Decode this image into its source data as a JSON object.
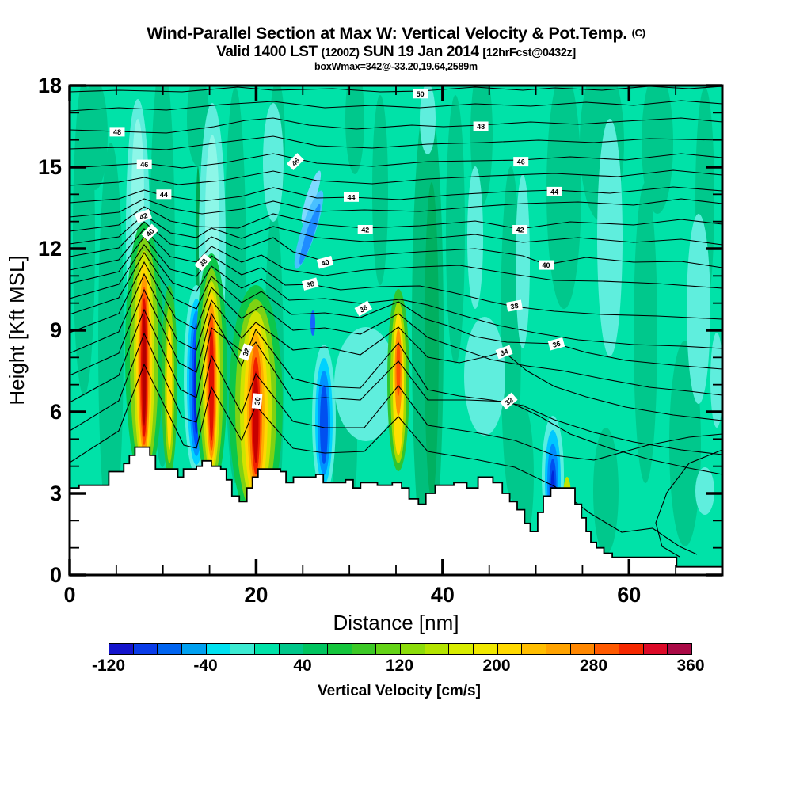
{
  "header": {
    "main_title": "Wind-Parallel Section at Max W: Vertical Velocity & Pot.Temp.",
    "main_title_unit": "(C)",
    "subtitle": {
      "valid": "Valid 1400 LST",
      "zulu": "(1200Z)",
      "date": "SUN 19 Jan 2014",
      "fcst": "[12hrFcst@0432z]"
    },
    "annotation": "boxWmax=342@-33.20,19.64,2589m"
  },
  "axes": {
    "x": {
      "label": "Distance [nm]",
      "min": 0,
      "max": 70,
      "major_ticks": [
        0,
        20,
        40,
        60
      ],
      "minor_step": 5
    },
    "y": {
      "label": "Height [Kft MSL]",
      "min": 0,
      "max": 18,
      "major_ticks": [
        0,
        3,
        6,
        9,
        12,
        15,
        18
      ],
      "minor_step": 1
    }
  },
  "colorbar": {
    "label": "Vertical Velocity [cm/s]",
    "ticks": [
      -120,
      -40,
      40,
      120,
      200,
      280,
      360
    ],
    "min": -120,
    "max": 360,
    "step": 20,
    "colors": [
      "#1414cc",
      "#0a3ce8",
      "#0064f0",
      "#00a0f0",
      "#00e1f0",
      "#3cebd2",
      "#00e2a8",
      "#00c78a",
      "#00c45f",
      "#14c53c",
      "#3cc926",
      "#64d316",
      "#8cdc0a",
      "#b4e400",
      "#d8ec00",
      "#f0e800",
      "#ffd900",
      "#ffbe00",
      "#ffa300",
      "#ff8700",
      "#ff5a00",
      "#f52800",
      "#dc0a28",
      "#aa0a46"
    ]
  },
  "chart_data": {
    "type": "heatmap",
    "title": "Wind-Parallel Section at Max W: Vertical Velocity & Pot.Temp. (C)",
    "xlabel": "Distance [nm]",
    "ylabel": "Height [Kft MSL]",
    "xlim": [
      0,
      70
    ],
    "ylim": [
      0,
      18
    ],
    "fill_field": {
      "variable": "Vertical Velocity",
      "units": "cm/s",
      "range": [
        -120,
        360
      ],
      "contour_interval": 20,
      "background_value_band": [
        0,
        40
      ]
    },
    "line_contours": {
      "variable": "Potential Temperature",
      "units": "C",
      "interval": 1,
      "labeled_interval": 2,
      "labeled_levels": [
        30,
        32,
        34,
        36,
        38,
        40,
        42,
        44,
        46,
        48,
        50
      ]
    },
    "max_w": {
      "value_cms": 342,
      "location": "-33.20,19.64",
      "altitude_m": 2589
    },
    "features": {
      "updrafts": [
        {
          "x_nm": 8.0,
          "base_kft": 4.7,
          "top_kft": 12.6,
          "peak_cms": 340
        },
        {
          "x_nm": 10.7,
          "base_kft": 3.9,
          "top_kft": 10.5,
          "peak_cms": 140
        },
        {
          "x_nm": 15.2,
          "base_kft": 4.2,
          "top_kft": 11.8,
          "peak_cms": 320
        },
        {
          "x_nm": 20.0,
          "base_kft": 3.9,
          "top_kft": 11.4,
          "peak_cms": 342
        },
        {
          "x_nm": 35.3,
          "base_kft": 3.3,
          "top_kft": 10.2,
          "peak_cms": 260
        }
      ],
      "downdrafts": [
        {
          "x_nm": 13.6,
          "base_kft": 4.3,
          "top_kft": 11.0,
          "peak_cms": -120
        },
        {
          "x_nm": 25.5,
          "base_kft": 10.5,
          "top_kft": 13.2,
          "peak_cms": -60
        },
        {
          "x_nm": 27.3,
          "base_kft": 3.7,
          "top_kft": 9.5,
          "peak_cms": -100
        },
        {
          "x_nm": 52.0,
          "base_kft": 1.6,
          "top_kft": 5.8,
          "peak_cms": -110
        }
      ]
    },
    "terrain_profile_nm_kft": [
      [
        0,
        3.2
      ],
      [
        1,
        3.3
      ],
      [
        4.2,
        3.8
      ],
      [
        5.8,
        4.1
      ],
      [
        6.4,
        4.4
      ],
      [
        7,
        4.7
      ],
      [
        8.6,
        4.4
      ],
      [
        9.2,
        3.9
      ],
      [
        11.6,
        3.6
      ],
      [
        12.2,
        3.9
      ],
      [
        13.6,
        4.0
      ],
      [
        14.2,
        4.2
      ],
      [
        15.2,
        4.0
      ],
      [
        16.2,
        3.9
      ],
      [
        16.8,
        3.5
      ],
      [
        17.4,
        2.9
      ],
      [
        18.2,
        2.7
      ],
      [
        19,
        3.2
      ],
      [
        19.6,
        3.6
      ],
      [
        20.2,
        3.9
      ],
      [
        22.6,
        3.8
      ],
      [
        23.2,
        3.4
      ],
      [
        24,
        3.6
      ],
      [
        26.4,
        3.7
      ],
      [
        27.2,
        3.4
      ],
      [
        29.6,
        3.5
      ],
      [
        30.4,
        3.2
      ],
      [
        31.2,
        3.4
      ],
      [
        33,
        3.3
      ],
      [
        34.6,
        3.4
      ],
      [
        35.6,
        3.2
      ],
      [
        36.4,
        2.8
      ],
      [
        37.4,
        2.6
      ],
      [
        38.2,
        3.0
      ],
      [
        39.2,
        3.3
      ],
      [
        41.2,
        3.4
      ],
      [
        42.6,
        3.2
      ],
      [
        43.8,
        3.6
      ],
      [
        45.4,
        3.4
      ],
      [
        46.4,
        3.0
      ],
      [
        47.2,
        2.7
      ],
      [
        48,
        2.4
      ],
      [
        48.8,
        1.9
      ],
      [
        49.4,
        1.6
      ],
      [
        50.2,
        2.3
      ],
      [
        50.8,
        2.9
      ],
      [
        51.6,
        3.2
      ],
      [
        53.4,
        3.2
      ],
      [
        54.2,
        2.6
      ],
      [
        54.9,
        2.1
      ],
      [
        55.4,
        1.6
      ],
      [
        55.9,
        1.2
      ],
      [
        56.5,
        1.0
      ],
      [
        57.3,
        0.8
      ],
      [
        58.2,
        0.65
      ],
      [
        64.9,
        0.65
      ],
      [
        65.1,
        0.3
      ],
      [
        70,
        0.3
      ]
    ],
    "contour_labels": [
      {
        "v": "50",
        "nm": 37.6,
        "kft": 17.7,
        "rot": 0
      },
      {
        "v": "48",
        "nm": 5.1,
        "kft": 16.3,
        "rot": 0
      },
      {
        "v": "48",
        "nm": 44.1,
        "kft": 16.5,
        "rot": 0
      },
      {
        "v": "46",
        "nm": 8.0,
        "kft": 15.1,
        "rot": 0
      },
      {
        "v": "46",
        "nm": 24.2,
        "kft": 15.2,
        "rot": -45
      },
      {
        "v": "46",
        "nm": 48.4,
        "kft": 15.2,
        "rot": 0
      },
      {
        "v": "44",
        "nm": 10.1,
        "kft": 14.0,
        "rot": 0
      },
      {
        "v": "44",
        "nm": 30.2,
        "kft": 13.9,
        "rot": 0
      },
      {
        "v": "44",
        "nm": 52.0,
        "kft": 14.1,
        "rot": 0
      },
      {
        "v": "42",
        "nm": 7.9,
        "kft": 13.2,
        "rot": -20
      },
      {
        "v": "42",
        "nm": 31.7,
        "kft": 12.7,
        "rot": 0
      },
      {
        "v": "42",
        "nm": 48.3,
        "kft": 12.7,
        "rot": 0
      },
      {
        "v": "40",
        "nm": 8.6,
        "kft": 12.6,
        "rot": -45
      },
      {
        "v": "40",
        "nm": 27.4,
        "kft": 11.5,
        "rot": -15
      },
      {
        "v": "40",
        "nm": 51.1,
        "kft": 11.4,
        "rot": 0
      },
      {
        "v": "38",
        "nm": 14.3,
        "kft": 11.5,
        "rot": -50
      },
      {
        "v": "38",
        "nm": 25.8,
        "kft": 10.7,
        "rot": -15
      },
      {
        "v": "38",
        "nm": 47.7,
        "kft": 9.9,
        "rot": -10
      },
      {
        "v": "36",
        "nm": 31.5,
        "kft": 9.8,
        "rot": -30
      },
      {
        "v": "36",
        "nm": 52.2,
        "kft": 8.5,
        "rot": -15
      },
      {
        "v": "34",
        "nm": 46.6,
        "kft": 8.2,
        "rot": -20
      },
      {
        "v": "32",
        "nm": 18.9,
        "kft": 8.2,
        "rot": -70
      },
      {
        "v": "32",
        "nm": 47.1,
        "kft": 6.4,
        "rot": -40
      },
      {
        "v": "30",
        "nm": 20.1,
        "kft": 6.4,
        "rot": -85
      }
    ]
  }
}
